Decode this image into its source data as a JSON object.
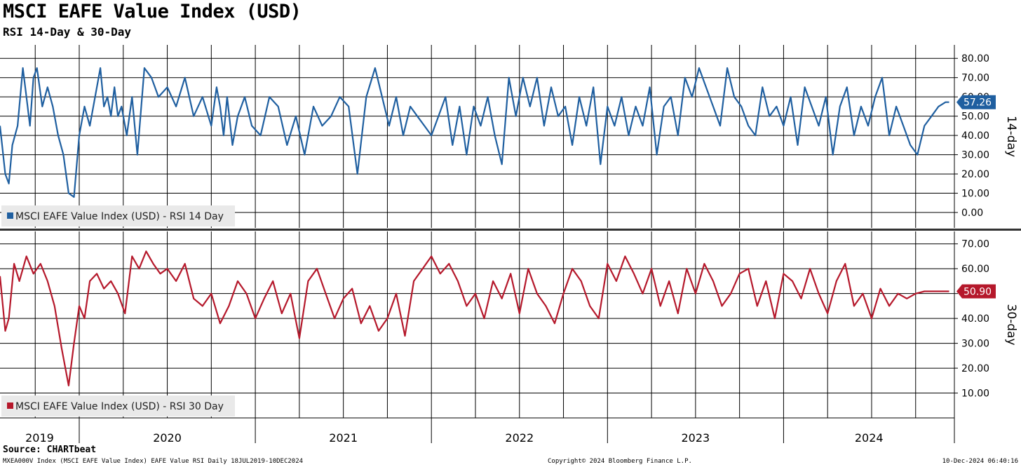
{
  "title": "MSCI EAFE Value Index (USD)",
  "subtitle": "RSI 14-Day & 30-Day",
  "chart_data": [
    {
      "type": "line",
      "panel": "top",
      "axis_title": "14-day",
      "ylim": [
        -8,
        87
      ],
      "yticks": [
        "80.00",
        "70.00",
        "60.00",
        "50.00",
        "40.00",
        "30.00",
        "20.00",
        "10.00",
        "0.00"
      ],
      "ytick_values": [
        80,
        70,
        60,
        50,
        40,
        30,
        20,
        10,
        0
      ],
      "legend": "MSCI EAFE Value Index (USD) - RSI 14 Day",
      "last_value_label": "57.26",
      "last_value": 57.26,
      "color": "#1f5fa0",
      "series": [
        {
          "name": "MSCI EAFE Value Index (USD) - RSI 14 Day",
          "x": [
            2019.55,
            2019.58,
            2019.6,
            2019.62,
            2019.65,
            2019.68,
            2019.7,
            2019.72,
            2019.74,
            2019.76,
            2019.79,
            2019.82,
            2019.85,
            2019.88,
            2019.91,
            2019.94,
            2019.97,
            2020.0,
            2020.03,
            2020.06,
            2020.09,
            2020.12,
            2020.14,
            2020.16,
            2020.18,
            2020.2,
            2020.22,
            2020.24,
            2020.27,
            2020.3,
            2020.33,
            2020.37,
            2020.41,
            2020.45,
            2020.5,
            2020.55,
            2020.6,
            2020.65,
            2020.7,
            2020.75,
            2020.78,
            2020.8,
            2020.82,
            2020.84,
            2020.87,
            2020.9,
            2020.94,
            2020.98,
            2021.03,
            2021.08,
            2021.13,
            2021.18,
            2021.23,
            2021.28,
            2021.33,
            2021.38,
            2021.43,
            2021.48,
            2021.53,
            2021.58,
            2021.63,
            2021.68,
            2021.72,
            2021.76,
            2021.8,
            2021.84,
            2021.88,
            2021.92,
            2021.96,
            2022.0,
            2022.04,
            2022.08,
            2022.12,
            2022.16,
            2022.2,
            2022.24,
            2022.28,
            2022.32,
            2022.36,
            2022.4,
            2022.44,
            2022.48,
            2022.52,
            2022.56,
            2022.6,
            2022.64,
            2022.68,
            2022.72,
            2022.76,
            2022.8,
            2022.84,
            2022.88,
            2022.92,
            2022.96,
            2023.0,
            2023.04,
            2023.08,
            2023.12,
            2023.16,
            2023.2,
            2023.24,
            2023.28,
            2023.32,
            2023.36,
            2023.4,
            2023.44,
            2023.48,
            2023.52,
            2023.56,
            2023.6,
            2023.64,
            2023.68,
            2023.72,
            2023.76,
            2023.8,
            2023.84,
            2023.88,
            2023.92,
            2023.96,
            2024.0,
            2024.04,
            2024.08,
            2024.12,
            2024.16,
            2024.2,
            2024.24,
            2024.28,
            2024.32,
            2024.36,
            2024.4,
            2024.44,
            2024.48,
            2024.52,
            2024.56,
            2024.6,
            2024.64,
            2024.68,
            2024.72,
            2024.76,
            2024.8,
            2024.84,
            2024.88,
            2024.92,
            2024.94
          ],
          "values": [
            45,
            20,
            15,
            35,
            45,
            75,
            60,
            45,
            70,
            75,
            55,
            65,
            55,
            40,
            30,
            10,
            8,
            40,
            55,
            45,
            60,
            75,
            55,
            60,
            50,
            65,
            50,
            55,
            40,
            60,
            30,
            75,
            70,
            60,
            65,
            55,
            70,
            50,
            60,
            45,
            65,
            55,
            40,
            60,
            35,
            50,
            60,
            45,
            40,
            60,
            55,
            35,
            50,
            30,
            55,
            45,
            50,
            60,
            55,
            20,
            60,
            75,
            60,
            45,
            60,
            40,
            55,
            50,
            45,
            40,
            50,
            60,
            35,
            55,
            30,
            55,
            45,
            60,
            40,
            25,
            70,
            50,
            70,
            55,
            70,
            45,
            65,
            50,
            55,
            35,
            60,
            45,
            65,
            25,
            55,
            45,
            60,
            40,
            55,
            45,
            65,
            30,
            55,
            60,
            40,
            70,
            60,
            75,
            65,
            55,
            45,
            75,
            60,
            55,
            45,
            40,
            65,
            50,
            55,
            45,
            60,
            35,
            65,
            55,
            45,
            60,
            30,
            55,
            65,
            40,
            55,
            45,
            60,
            70,
            40,
            55,
            45,
            35,
            30,
            45,
            50,
            55,
            57.26,
            57.26
          ]
        }
      ]
    },
    {
      "type": "line",
      "panel": "bottom",
      "axis_title": "30-day",
      "ylim": [
        0,
        75
      ],
      "yticks": [
        "70.00",
        "60.00",
        "50.00",
        "40.00",
        "30.00",
        "20.00",
        "10.00"
      ],
      "ytick_values": [
        70,
        60,
        50,
        40,
        30,
        20,
        10
      ],
      "legend": "MSCI EAFE Value Index (USD) - RSI 30 Day",
      "last_value_label": "50.90",
      "last_value": 50.9,
      "color": "#b5182b",
      "series": [
        {
          "name": "MSCI EAFE Value Index (USD) - RSI 30 Day",
          "x": [
            2019.55,
            2019.58,
            2019.6,
            2019.63,
            2019.66,
            2019.7,
            2019.74,
            2019.78,
            2019.82,
            2019.86,
            2019.9,
            2019.94,
            2019.97,
            2020.0,
            2020.03,
            2020.06,
            2020.1,
            2020.14,
            2020.18,
            2020.22,
            2020.26,
            2020.3,
            2020.34,
            2020.38,
            2020.42,
            2020.46,
            2020.5,
            2020.55,
            2020.6,
            2020.65,
            2020.7,
            2020.75,
            2020.8,
            2020.85,
            2020.9,
            2020.95,
            2021.0,
            2021.05,
            2021.1,
            2021.15,
            2021.2,
            2021.25,
            2021.3,
            2021.35,
            2021.4,
            2021.45,
            2021.5,
            2021.55,
            2021.6,
            2021.65,
            2021.7,
            2021.75,
            2021.8,
            2021.85,
            2021.9,
            2021.95,
            2022.0,
            2022.05,
            2022.1,
            2022.15,
            2022.2,
            2022.25,
            2022.3,
            2022.35,
            2022.4,
            2022.45,
            2022.5,
            2022.55,
            2022.6,
            2022.65,
            2022.7,
            2022.75,
            2022.8,
            2022.85,
            2022.9,
            2022.95,
            2023.0,
            2023.05,
            2023.1,
            2023.15,
            2023.2,
            2023.25,
            2023.3,
            2023.35,
            2023.4,
            2023.45,
            2023.5,
            2023.55,
            2023.6,
            2023.65,
            2023.7,
            2023.75,
            2023.8,
            2023.85,
            2023.9,
            2023.95,
            2024.0,
            2024.05,
            2024.1,
            2024.15,
            2024.2,
            2024.25,
            2024.3,
            2024.35,
            2024.4,
            2024.45,
            2024.5,
            2024.55,
            2024.6,
            2024.65,
            2024.7,
            2024.75,
            2024.8,
            2024.85,
            2024.9,
            2024.94
          ],
          "values": [
            57,
            35,
            40,
            62,
            55,
            65,
            58,
            62,
            55,
            45,
            28,
            13,
            30,
            45,
            40,
            55,
            58,
            52,
            55,
            50,
            42,
            65,
            60,
            67,
            62,
            58,
            60,
            55,
            62,
            48,
            45,
            50,
            38,
            45,
            55,
            50,
            40,
            48,
            55,
            42,
            50,
            32,
            55,
            60,
            50,
            40,
            48,
            52,
            38,
            45,
            35,
            40,
            50,
            33,
            55,
            60,
            65,
            58,
            62,
            55,
            45,
            50,
            40,
            55,
            48,
            58,
            42,
            60,
            50,
            45,
            38,
            50,
            60,
            55,
            45,
            40,
            62,
            55,
            65,
            58,
            50,
            60,
            45,
            55,
            42,
            60,
            50,
            62,
            55,
            45,
            50,
            58,
            60,
            45,
            55,
            40,
            58,
            55,
            48,
            60,
            50,
            42,
            55,
            62,
            45,
            50,
            40,
            52,
            45,
            50,
            48,
            50,
            50.9,
            50.9,
            50.9,
            50.9
          ]
        }
      ]
    }
  ],
  "x_axis": {
    "years": [
      "2019",
      "2020",
      "2021",
      "2022",
      "2023",
      "2024"
    ],
    "range": [
      2019.55,
      2024.97
    ]
  },
  "footer": {
    "source": "Source: CHARTbeat",
    "left": "MXEA000V Index (MSCI EAFE Value Index) EAFE Value RSI  Daily 18JUL2019-10DEC2024",
    "center": "Copyright© 2024 Bloomberg Finance L.P.",
    "right": "10-Dec-2024 06:40:16"
  }
}
